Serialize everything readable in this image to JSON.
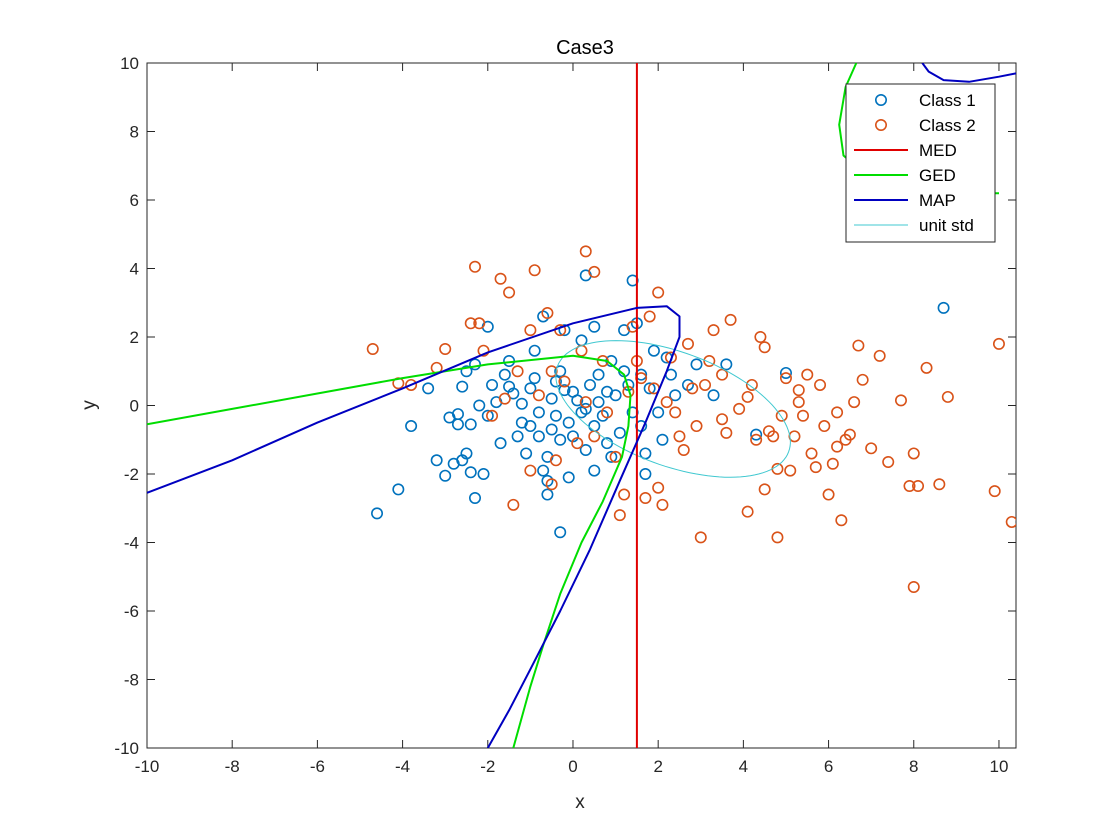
{
  "chart_data": {
    "type": "scatter",
    "title": "Case3",
    "xlabel": "x",
    "ylabel": "y",
    "xlim": [
      -10,
      10.4
    ],
    "ylim": [
      -10,
      10
    ],
    "xticks": [
      -10,
      -8,
      -6,
      -4,
      -2,
      0,
      2,
      4,
      6,
      8,
      10
    ],
    "yticks": [
      -10,
      -8,
      -6,
      -4,
      -2,
      0,
      2,
      4,
      6,
      8,
      10
    ],
    "grid": false,
    "legend_position": "top-right",
    "legend": [
      {
        "label": "Class 1",
        "kind": "marker",
        "color": "#0072BD"
      },
      {
        "label": "Class 2",
        "kind": "marker",
        "color": "#D95319"
      },
      {
        "label": "MED",
        "kind": "line",
        "color": "#E00000"
      },
      {
        "label": "GED",
        "kind": "line",
        "color": "#00DD00"
      },
      {
        "label": "MAP",
        "kind": "line",
        "color": "#0000C0"
      },
      {
        "label": "unit std",
        "kind": "line",
        "color": "#40C8D0"
      }
    ],
    "series": [
      {
        "name": "Class 1",
        "color": "#0072BD",
        "points": [
          [
            -4.6,
            -3.15
          ],
          [
            -4.1,
            -2.45
          ],
          [
            -3.8,
            -0.6
          ],
          [
            -3.2,
            -1.6
          ],
          [
            -3.0,
            -2.05
          ],
          [
            -2.8,
            -1.7
          ],
          [
            -2.9,
            -0.35
          ],
          [
            -2.7,
            -0.55
          ],
          [
            -2.5,
            -1.4
          ],
          [
            -2.6,
            -1.6
          ],
          [
            -2.4,
            -1.95
          ],
          [
            -2.3,
            -2.7
          ],
          [
            -2.1,
            -2.0
          ],
          [
            -2.6,
            0.55
          ],
          [
            -2.4,
            -0.55
          ],
          [
            -2.2,
            0.0
          ],
          [
            -2.0,
            -0.3
          ],
          [
            -2.3,
            1.2
          ],
          [
            -2.5,
            1.0
          ],
          [
            -2.0,
            2.3
          ],
          [
            -1.8,
            0.1
          ],
          [
            -1.6,
            0.9
          ],
          [
            -1.5,
            0.55
          ],
          [
            -1.3,
            -0.9
          ],
          [
            -1.4,
            0.35
          ],
          [
            -1.2,
            0.05
          ],
          [
            -1.1,
            -1.4
          ],
          [
            -1.0,
            -0.6
          ],
          [
            -0.9,
            0.8
          ],
          [
            -0.8,
            -0.2
          ],
          [
            -0.7,
            -1.9
          ],
          [
            -0.6,
            -1.5
          ],
          [
            -0.6,
            -2.2
          ],
          [
            -0.5,
            0.2
          ],
          [
            -0.4,
            -0.3
          ],
          [
            -0.3,
            1.0
          ],
          [
            -0.3,
            -1.0
          ],
          [
            -0.2,
            0.45
          ],
          [
            -0.1,
            -0.5
          ],
          [
            0.0,
            -0.9
          ],
          [
            0.1,
            0.15
          ],
          [
            0.2,
            -0.2
          ],
          [
            0.2,
            1.9
          ],
          [
            0.3,
            -1.3
          ],
          [
            0.4,
            0.6
          ],
          [
            0.5,
            -0.6
          ],
          [
            0.5,
            2.3
          ],
          [
            0.6,
            0.9
          ],
          [
            0.7,
            -0.3
          ],
          [
            0.8,
            -1.1
          ],
          [
            0.9,
            1.3
          ],
          [
            1.0,
            0.3
          ],
          [
            1.1,
            -0.8
          ],
          [
            1.2,
            2.2
          ],
          [
            1.3,
            0.6
          ],
          [
            1.4,
            -0.2
          ],
          [
            1.5,
            2.4
          ],
          [
            1.6,
            0.9
          ],
          [
            1.7,
            -1.4
          ],
          [
            1.8,
            0.5
          ],
          [
            1.9,
            1.6
          ],
          [
            2.0,
            -0.2
          ],
          [
            2.2,
            1.4
          ],
          [
            2.4,
            0.3
          ],
          [
            2.7,
            0.6
          ],
          [
            2.9,
            1.2
          ],
          [
            3.3,
            0.3
          ],
          [
            3.6,
            1.2
          ],
          [
            -0.3,
            -3.7
          ],
          [
            0.3,
            3.8
          ],
          [
            1.4,
            3.65
          ],
          [
            4.3,
            -0.85
          ],
          [
            5.0,
            0.95
          ],
          [
            8.7,
            2.85
          ],
          [
            -1.2,
            -0.5
          ],
          [
            -0.8,
            -0.9
          ],
          [
            -0.4,
            0.7
          ],
          [
            0.0,
            0.4
          ],
          [
            0.3,
            -0.1
          ],
          [
            0.6,
            0.1
          ],
          [
            -1.5,
            1.3
          ],
          [
            -0.9,
            1.6
          ],
          [
            -0.2,
            2.2
          ],
          [
            -1.7,
            -1.1
          ],
          [
            -0.6,
            -2.6
          ],
          [
            -0.1,
            -2.1
          ],
          [
            0.5,
            -1.9
          ],
          [
            1.7,
            -2.0
          ],
          [
            2.1,
            -1.0
          ],
          [
            2.3,
            0.9
          ],
          [
            -1.0,
            0.5
          ],
          [
            -0.5,
            -0.7
          ],
          [
            0.8,
            0.4
          ],
          [
            1.2,
            1.0
          ],
          [
            1.6,
            -0.6
          ],
          [
            -1.9,
            0.6
          ],
          [
            -2.7,
            -0.25
          ],
          [
            -3.4,
            0.5
          ],
          [
            -0.7,
            2.6
          ],
          [
            0.9,
            -1.5
          ]
        ]
      },
      {
        "name": "Class 2",
        "color": "#D95319",
        "points": [
          [
            -4.7,
            1.65
          ],
          [
            -4.1,
            0.65
          ],
          [
            -3.8,
            0.6
          ],
          [
            -3.2,
            1.1
          ],
          [
            -3.0,
            1.65
          ],
          [
            -2.4,
            2.4
          ],
          [
            -2.2,
            2.4
          ],
          [
            -2.3,
            4.05
          ],
          [
            -2.1,
            1.6
          ],
          [
            -1.7,
            3.7
          ],
          [
            -1.5,
            3.3
          ],
          [
            -0.9,
            3.95
          ],
          [
            -1.0,
            2.2
          ],
          [
            -0.6,
            2.7
          ],
          [
            -0.3,
            2.2
          ],
          [
            0.3,
            4.5
          ],
          [
            0.5,
            3.9
          ],
          [
            0.2,
            1.6
          ],
          [
            -0.5,
            1.0
          ],
          [
            -1.4,
            -2.9
          ],
          [
            -1.0,
            -1.9
          ],
          [
            -0.5,
            -2.3
          ],
          [
            0.1,
            -1.1
          ],
          [
            0.5,
            -0.9
          ],
          [
            1.0,
            -1.5
          ],
          [
            1.2,
            -2.6
          ],
          [
            1.1,
            -3.2
          ],
          [
            1.7,
            -2.7
          ],
          [
            2.0,
            -2.4
          ],
          [
            2.1,
            -2.9
          ],
          [
            2.5,
            -0.9
          ],
          [
            2.8,
            0.5
          ],
          [
            3.0,
            -3.85
          ],
          [
            3.2,
            1.3
          ],
          [
            3.5,
            -0.4
          ],
          [
            3.7,
            2.5
          ],
          [
            3.9,
            -0.1
          ],
          [
            4.1,
            0.25
          ],
          [
            4.3,
            -1.0
          ],
          [
            4.5,
            1.7
          ],
          [
            4.6,
            -0.75
          ],
          [
            4.7,
            -0.9
          ],
          [
            4.8,
            -1.85
          ],
          [
            4.9,
            -0.3
          ],
          [
            5.0,
            0.8
          ],
          [
            5.1,
            -1.9
          ],
          [
            5.2,
            -0.9
          ],
          [
            5.3,
            0.1
          ],
          [
            5.4,
            -0.3
          ],
          [
            5.5,
            0.9
          ],
          [
            5.6,
            -1.4
          ],
          [
            5.7,
            -1.8
          ],
          [
            5.8,
            0.6
          ],
          [
            5.9,
            -0.6
          ],
          [
            6.0,
            -2.6
          ],
          [
            6.1,
            -1.7
          ],
          [
            6.2,
            -0.2
          ],
          [
            6.3,
            -3.35
          ],
          [
            6.4,
            -1.0
          ],
          [
            6.5,
            -0.85
          ],
          [
            6.6,
            0.1
          ],
          [
            6.7,
            1.75
          ],
          [
            6.8,
            0.75
          ],
          [
            7.0,
            -1.25
          ],
          [
            7.2,
            1.45
          ],
          [
            7.4,
            -1.65
          ],
          [
            7.7,
            0.15
          ],
          [
            7.9,
            -2.35
          ],
          [
            8.0,
            -1.4
          ],
          [
            8.1,
            -2.35
          ],
          [
            8.3,
            1.1
          ],
          [
            8.6,
            -2.3
          ],
          [
            8.8,
            0.25
          ],
          [
            9.9,
            -2.5
          ],
          [
            10.0,
            1.8
          ],
          [
            10.3,
            -3.4
          ],
          [
            8.0,
            -5.3
          ],
          [
            4.8,
            -3.85
          ],
          [
            4.1,
            -3.1
          ],
          [
            4.5,
            -2.45
          ],
          [
            3.3,
            2.2
          ],
          [
            2.7,
            1.8
          ],
          [
            2.3,
            1.4
          ],
          [
            1.8,
            2.6
          ],
          [
            1.4,
            2.3
          ],
          [
            2.0,
            3.3
          ],
          [
            1.9,
            0.5
          ],
          [
            1.6,
            0.8
          ],
          [
            2.4,
            -0.2
          ],
          [
            2.9,
            -0.6
          ],
          [
            3.5,
            0.9
          ],
          [
            4.2,
            0.6
          ],
          [
            4.4,
            2.0
          ],
          [
            3.1,
            0.6
          ],
          [
            2.6,
            -1.3
          ],
          [
            1.3,
            0.4
          ],
          [
            0.8,
            -0.2
          ],
          [
            0.3,
            0.1
          ],
          [
            -0.2,
            0.7
          ],
          [
            -0.8,
            0.3
          ],
          [
            -1.3,
            1.0
          ],
          [
            -1.6,
            0.2
          ],
          [
            -1.9,
            -0.3
          ],
          [
            -0.4,
            -1.6
          ],
          [
            0.7,
            1.3
          ],
          [
            1.5,
            1.3
          ],
          [
            2.2,
            0.1
          ],
          [
            3.6,
            -0.8
          ],
          [
            5.3,
            0.45
          ],
          [
            6.2,
            -1.2
          ]
        ]
      }
    ],
    "curves": [
      {
        "name": "MED",
        "color": "#E00000",
        "points": [
          [
            1.5,
            -10
          ],
          [
            1.5,
            10
          ]
        ]
      },
      {
        "name": "GED",
        "color": "#00DD00",
        "points": [
          [
            -10,
            -0.55
          ],
          [
            -8,
            -0.1
          ],
          [
            -6,
            0.35
          ],
          [
            -4,
            0.8
          ],
          [
            -2,
            1.2
          ],
          [
            0,
            1.45
          ],
          [
            0.8,
            1.3
          ],
          [
            1.2,
            0.9
          ],
          [
            1.35,
            0.3
          ],
          [
            1.3,
            -0.6
          ],
          [
            1.15,
            -1.5
          ],
          [
            0.7,
            -2.8
          ],
          [
            0.2,
            -4.0
          ],
          [
            -0.3,
            -5.5
          ],
          [
            -0.7,
            -7.0
          ],
          [
            -1.0,
            -8.2
          ],
          [
            -1.4,
            -10
          ]
        ]
      },
      {
        "name": "GED",
        "color": "#00DD00",
        "points": [
          [
            6.65,
            10
          ],
          [
            6.4,
            9.3
          ],
          [
            6.25,
            8.2
          ],
          [
            6.35,
            7.3
          ],
          [
            6.9,
            6.7
          ],
          [
            7.8,
            6.3
          ],
          [
            9.0,
            6.2
          ],
          [
            10.0,
            6.2
          ]
        ]
      },
      {
        "name": "MAP",
        "color": "#0000C0",
        "points": [
          [
            -10,
            -2.55
          ],
          [
            -8,
            -1.6
          ],
          [
            -6,
            -0.5
          ],
          [
            -4,
            0.5
          ],
          [
            -2,
            1.55
          ],
          [
            0,
            2.4
          ],
          [
            1.5,
            2.85
          ],
          [
            2.2,
            2.9
          ],
          [
            2.5,
            2.6
          ],
          [
            2.5,
            2.0
          ],
          [
            2.2,
            1.0
          ],
          [
            1.7,
            -0.5
          ],
          [
            1.1,
            -2.2
          ],
          [
            0.4,
            -4.2
          ],
          [
            -0.3,
            -6.0
          ],
          [
            -1.0,
            -7.7
          ],
          [
            -1.5,
            -8.9
          ],
          [
            -2.0,
            -10
          ]
        ]
      },
      {
        "name": "MAP",
        "color": "#0000C0",
        "points": [
          [
            8.2,
            10
          ],
          [
            8.35,
            9.75
          ],
          [
            8.7,
            9.5
          ],
          [
            9.3,
            9.45
          ],
          [
            10.0,
            9.6
          ],
          [
            10.4,
            9.7
          ]
        ]
      }
    ],
    "ellipse": {
      "name": "unit std",
      "color": "#40C8D0",
      "center": [
        2.35,
        -0.1
      ],
      "semi_axes": [
        3.0,
        1.6
      ],
      "angle_deg": -28
    }
  }
}
